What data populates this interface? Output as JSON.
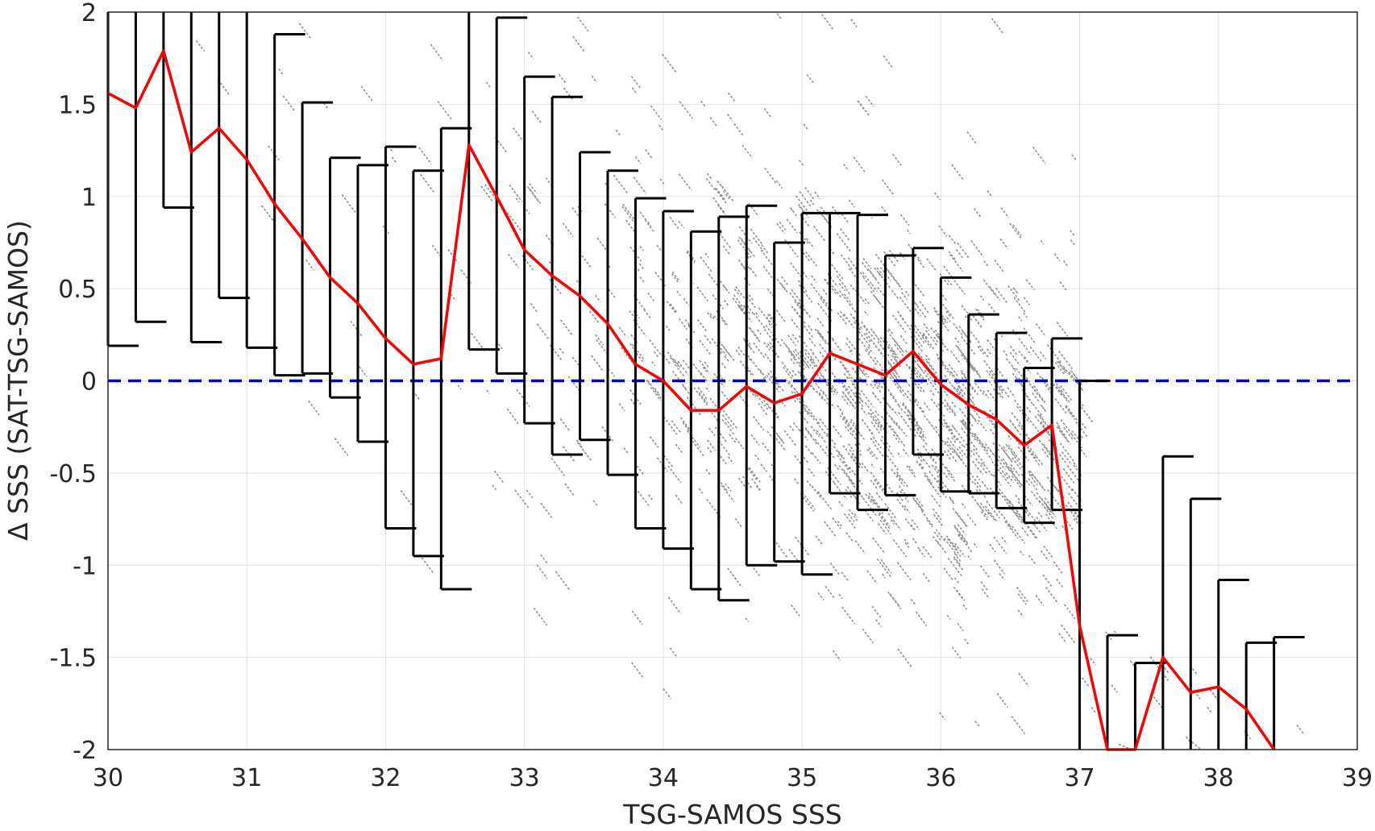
{
  "chart_data": {
    "type": "scatter",
    "xlabel": "TSG-SAMOS SSS",
    "ylabel": "Δ SSS (SAT-TSG-SAMOS)",
    "xlim": [
      30,
      39
    ],
    "ylim": [
      -2,
      2
    ],
    "xticks": [
      "30",
      "31",
      "32",
      "33",
      "34",
      "35",
      "36",
      "37",
      "38",
      "39"
    ],
    "yticks": [
      "2",
      "1.5",
      "1",
      "0.5",
      "0",
      "-0.5",
      "-1",
      "-1.5",
      "-2"
    ],
    "grid": true,
    "reference_line": {
      "y": 0,
      "style": "dashed",
      "color": "#0000dd"
    },
    "scatter_color": "#808080",
    "mean_color": "#ff0000",
    "errorbar_color": "#000000",
    "scatter_cloud": {
      "description_values": "gray individual differences; dense band along slope ~ -1 centered near x=35.8, y=-0.1",
      "center_x": 35.8,
      "center_y": -0.1,
      "slope": -1
    },
    "binned": [
      {
        "x": 30.0,
        "mean": 1.56,
        "lower": 0.19,
        "upper": 2.0
      },
      {
        "x": 30.2,
        "mean": 1.48,
        "lower": 0.32,
        "upper": 2.0
      },
      {
        "x": 30.4,
        "mean": 1.79,
        "lower": 0.94,
        "upper": 2.0
      },
      {
        "x": 30.6,
        "mean": 1.24,
        "lower": 0.21,
        "upper": 2.0
      },
      {
        "x": 30.8,
        "mean": 1.37,
        "lower": 0.45,
        "upper": 2.0
      },
      {
        "x": 31.0,
        "mean": 1.2,
        "lower": 0.18,
        "upper": 2.0
      },
      {
        "x": 31.2,
        "mean": 0.96,
        "lower": 0.03,
        "upper": 1.88
      },
      {
        "x": 31.4,
        "mean": 0.77,
        "lower": 0.04,
        "upper": 1.51
      },
      {
        "x": 31.6,
        "mean": 0.56,
        "lower": -0.09,
        "upper": 1.21
      },
      {
        "x": 31.8,
        "mean": 0.42,
        "lower": -0.33,
        "upper": 1.17
      },
      {
        "x": 32.0,
        "mean": 0.23,
        "lower": -0.8,
        "upper": 1.27
      },
      {
        "x": 32.2,
        "mean": 0.09,
        "lower": -0.95,
        "upper": 1.14
      },
      {
        "x": 32.4,
        "mean": 0.12,
        "lower": -1.13,
        "upper": 1.37
      },
      {
        "x": 32.6,
        "mean": 1.28,
        "lower": 0.17,
        "upper": 2.0
      },
      {
        "x": 32.8,
        "mean": 1.0,
        "lower": 0.04,
        "upper": 1.97
      },
      {
        "x": 33.0,
        "mean": 0.71,
        "lower": -0.23,
        "upper": 1.65
      },
      {
        "x": 33.2,
        "mean": 0.57,
        "lower": -0.4,
        "upper": 1.54
      },
      {
        "x": 33.4,
        "mean": 0.46,
        "lower": -0.32,
        "upper": 1.24
      },
      {
        "x": 33.6,
        "mean": 0.31,
        "lower": -0.51,
        "upper": 1.14
      },
      {
        "x": 33.8,
        "mean": 0.09,
        "lower": -0.8,
        "upper": 0.99
      },
      {
        "x": 34.0,
        "mean": 0.0,
        "lower": -0.91,
        "upper": 0.92
      },
      {
        "x": 34.2,
        "mean": -0.16,
        "lower": -1.13,
        "upper": 0.81
      },
      {
        "x": 34.4,
        "mean": -0.16,
        "lower": -1.19,
        "upper": 0.89
      },
      {
        "x": 34.6,
        "mean": -0.03,
        "lower": -1.0,
        "upper": 0.95
      },
      {
        "x": 34.8,
        "mean": -0.12,
        "lower": -0.98,
        "upper": 0.75
      },
      {
        "x": 35.0,
        "mean": -0.07,
        "lower": -1.05,
        "upper": 0.91
      },
      {
        "x": 35.2,
        "mean": 0.15,
        "lower": -0.61,
        "upper": 0.91
      },
      {
        "x": 35.4,
        "mean": 0.09,
        "lower": -0.7,
        "upper": 0.9
      },
      {
        "x": 35.6,
        "mean": 0.03,
        "lower": -0.62,
        "upper": 0.68
      },
      {
        "x": 35.8,
        "mean": 0.16,
        "lower": -0.4,
        "upper": 0.72
      },
      {
        "x": 36.0,
        "mean": -0.02,
        "lower": -0.6,
        "upper": 0.56
      },
      {
        "x": 36.2,
        "mean": -0.13,
        "lower": -0.61,
        "upper": 0.36
      },
      {
        "x": 36.4,
        "mean": -0.21,
        "lower": -0.69,
        "upper": 0.26
      },
      {
        "x": 36.6,
        "mean": -0.35,
        "lower": -0.77,
        "upper": 0.07
      },
      {
        "x": 36.8,
        "mean": -0.24,
        "lower": -0.7,
        "upper": 0.23
      },
      {
        "x": 37.0,
        "mean": -1.33,
        "lower": -2.0,
        "upper": 0.0
      },
      {
        "x": 37.2,
        "mean": -2.0,
        "lower": -2.0,
        "upper": -1.38
      },
      {
        "x": 37.4,
        "mean": -2.0,
        "lower": -2.0,
        "upper": -1.53
      },
      {
        "x": 37.6,
        "mean": -1.5,
        "lower": -2.0,
        "upper": -0.41
      },
      {
        "x": 37.8,
        "mean": -1.69,
        "lower": -2.0,
        "upper": -0.64
      },
      {
        "x": 38.0,
        "mean": -1.66,
        "lower": -2.0,
        "upper": -1.08
      },
      {
        "x": 38.2,
        "mean": -1.78,
        "lower": -2.0,
        "upper": -1.42
      },
      {
        "x": 38.4,
        "mean": -2.0,
        "lower": -2.0,
        "upper": -1.39
      }
    ]
  }
}
